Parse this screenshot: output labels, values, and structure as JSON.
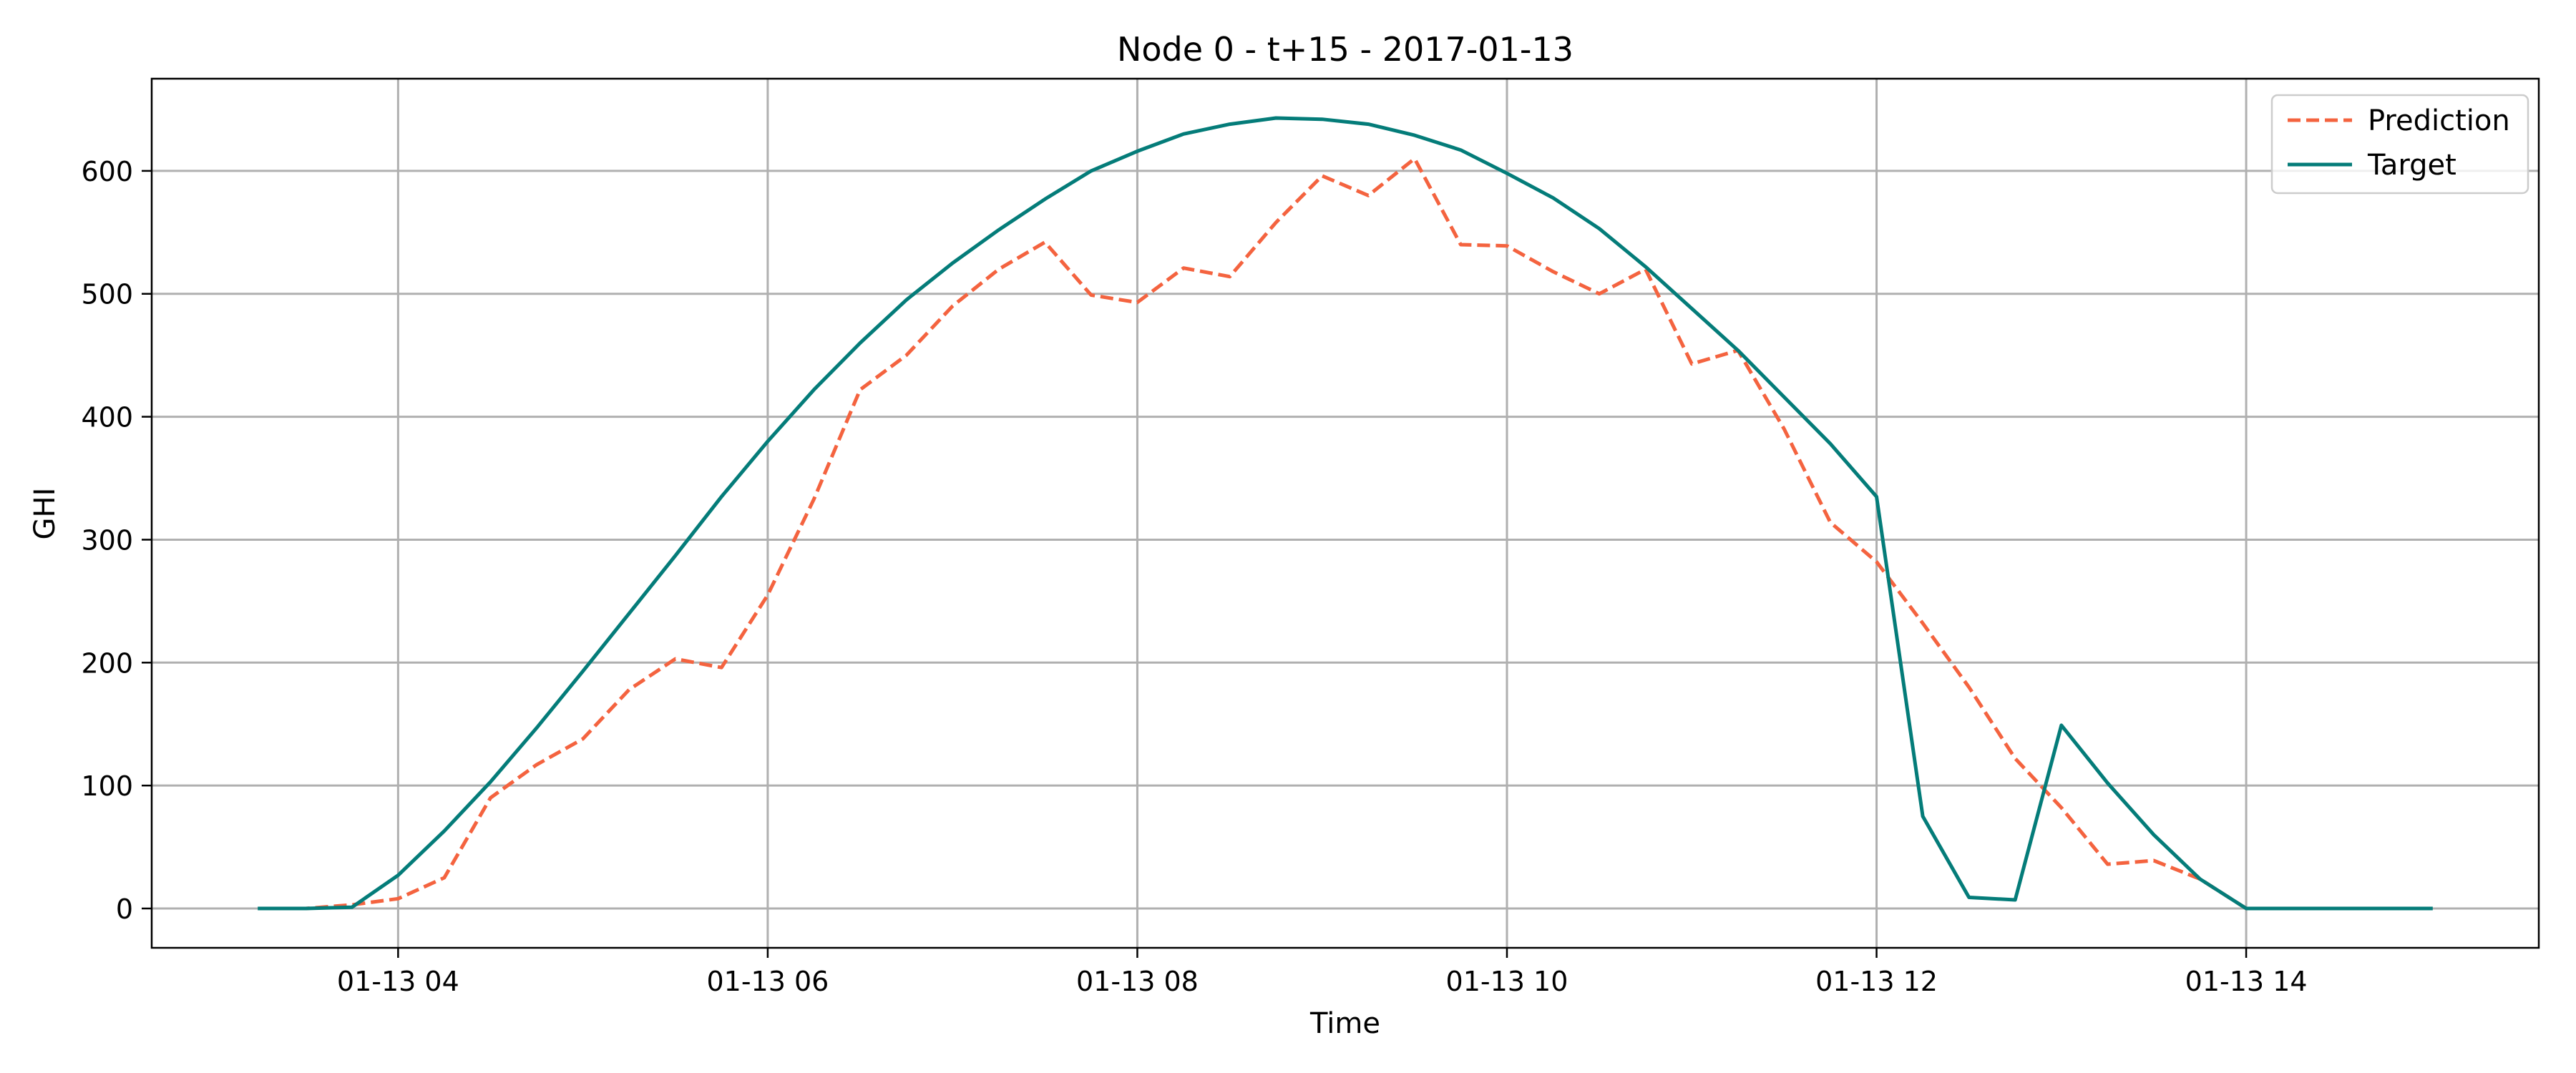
{
  "chart_data": {
    "type": "line",
    "title": "Node 0 - t+15 - 2017-01-13",
    "xlabel": "Time",
    "ylabel": "GHI",
    "x_ticks": [
      "2017-01-13T04:00",
      "2017-01-13T06:00",
      "2017-01-13T08:00",
      "2017-01-13T10:00",
      "2017-01-13T12:00",
      "2017-01-13T14:00"
    ],
    "x_tick_labels": [
      "01-13 04",
      "01-13 06",
      "01-13 08",
      "01-13 10",
      "01-13 12",
      "01-13 14"
    ],
    "x_range": [
      "2017-01-13T02:40",
      "2017-01-13T15:35"
    ],
    "y_ticks": [
      0,
      100,
      200,
      300,
      400,
      500,
      600
    ],
    "ylim": [
      -32,
      675
    ],
    "grid": true,
    "legend_position": "top-right",
    "x": [
      "2017-01-13T03:15",
      "2017-01-13T03:30",
      "2017-01-13T03:45",
      "2017-01-13T04:00",
      "2017-01-13T04:15",
      "2017-01-13T04:30",
      "2017-01-13T04:45",
      "2017-01-13T05:00",
      "2017-01-13T05:15",
      "2017-01-13T05:30",
      "2017-01-13T05:45",
      "2017-01-13T06:00",
      "2017-01-13T06:15",
      "2017-01-13T06:30",
      "2017-01-13T06:45",
      "2017-01-13T07:00",
      "2017-01-13T07:15",
      "2017-01-13T07:30",
      "2017-01-13T07:45",
      "2017-01-13T08:00",
      "2017-01-13T08:15",
      "2017-01-13T08:30",
      "2017-01-13T08:45",
      "2017-01-13T09:00",
      "2017-01-13T09:15",
      "2017-01-13T09:30",
      "2017-01-13T09:45",
      "2017-01-13T10:00",
      "2017-01-13T10:15",
      "2017-01-13T10:30",
      "2017-01-13T10:45",
      "2017-01-13T11:00",
      "2017-01-13T11:15",
      "2017-01-13T11:30",
      "2017-01-13T11:45",
      "2017-01-13T12:00",
      "2017-01-13T12:15",
      "2017-01-13T12:30",
      "2017-01-13T12:45",
      "2017-01-13T13:00",
      "2017-01-13T13:15",
      "2017-01-13T13:30",
      "2017-01-13T13:45",
      "2017-01-13T14:00",
      "2017-01-13T14:15",
      "2017-01-13T14:30",
      "2017-01-13T14:45",
      "2017-01-13T15:00"
    ],
    "series": [
      {
        "name": "Prediction",
        "color": "#f4633f",
        "style": "dashed",
        "values": [
          0,
          0,
          3,
          8,
          25,
          90,
          117,
          138,
          178,
          203,
          196,
          255,
          333,
          422,
          450,
          490,
          520,
          542,
          499,
          493,
          521,
          514,
          558,
          596,
          580,
          610,
          540,
          539,
          518,
          500,
          520,
          443,
          454,
          390,
          314,
          282,
          232,
          180,
          122,
          82,
          36,
          39,
          24,
          0,
          0,
          0,
          0,
          0
        ]
      },
      {
        "name": "Target",
        "color": "#047c79",
        "style": "solid",
        "values": [
          0,
          0,
          1,
          27,
          63,
          103,
          147,
          193,
          240,
          287,
          335,
          380,
          422,
          460,
          495,
          525,
          552,
          577,
          600,
          616,
          630,
          638,
          643,
          642,
          638,
          629,
          617,
          598,
          578,
          553,
          522,
          488,
          454,
          416,
          378,
          335,
          75,
          9,
          7,
          149,
          102,
          60,
          24,
          0,
          0,
          0,
          0,
          0
        ]
      }
    ]
  }
}
